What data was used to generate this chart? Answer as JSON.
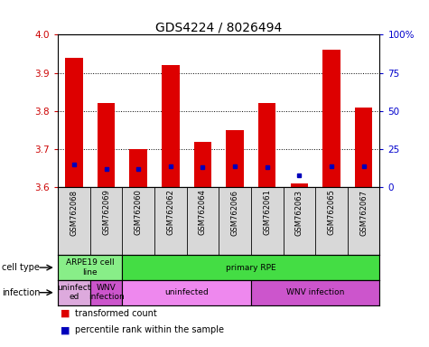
{
  "title": "GDS4224 / 8026494",
  "samples": [
    "GSM762068",
    "GSM762069",
    "GSM762060",
    "GSM762062",
    "GSM762064",
    "GSM762066",
    "GSM762061",
    "GSM762063",
    "GSM762065",
    "GSM762067"
  ],
  "transformed_count": [
    3.94,
    3.82,
    3.7,
    3.92,
    3.72,
    3.75,
    3.82,
    3.61,
    3.96,
    3.81
  ],
  "percentile_rank": [
    15,
    12,
    12,
    14,
    13,
    14,
    13,
    8,
    14,
    14
  ],
  "ylim_left": [
    3.6,
    4.0
  ],
  "ylim_right": [
    0,
    100
  ],
  "yticks_left": [
    3.6,
    3.7,
    3.8,
    3.9,
    4.0
  ],
  "yticks_right": [
    0,
    25,
    50,
    75,
    100
  ],
  "ytick_labels_right": [
    "0",
    "25",
    "50",
    "75",
    "100%"
  ],
  "bar_color": "#dd0000",
  "dot_color": "#0000bb",
  "bar_bottom": 3.6,
  "cell_type_labels": [
    {
      "label": "ARPE19 cell\nline",
      "start": 0,
      "end": 2,
      "color": "#88ee88"
    },
    {
      "label": "primary RPE",
      "start": 2,
      "end": 10,
      "color": "#44dd44"
    }
  ],
  "infection_labels": [
    {
      "label": "uninfect\ned",
      "start": 0,
      "end": 1,
      "color": "#ddaadd"
    },
    {
      "label": "WNV\ninfection",
      "start": 1,
      "end": 2,
      "color": "#cc55cc"
    },
    {
      "label": "uninfected",
      "start": 2,
      "end": 6,
      "color": "#ee88ee"
    },
    {
      "label": "WNV infection",
      "start": 6,
      "end": 10,
      "color": "#cc55cc"
    }
  ],
  "grid_color": "#888888",
  "left_tick_color": "#cc0000",
  "right_tick_color": "#0000cc",
  "title_fontsize": 10,
  "tick_fontsize": 7.5,
  "bar_width": 0.55,
  "label_fontsize": 7,
  "row_fontsize": 7,
  "legend_fontsize": 7
}
